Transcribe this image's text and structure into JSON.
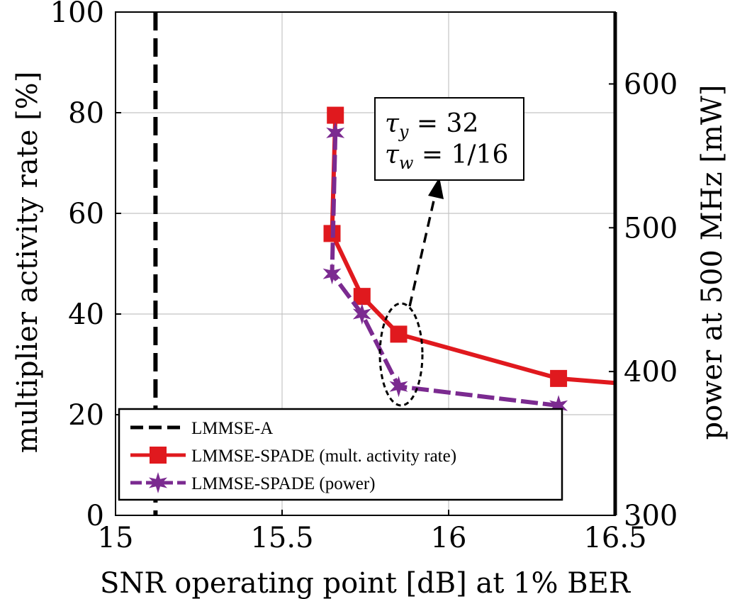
{
  "chart_data": {
    "type": "line",
    "xlabel": "SNR operating point [dB] at 1% BER",
    "ylabel_left": "multiplier activity rate [%]",
    "ylabel_right": "power at 500 MHz [mW]",
    "xlim": [
      15,
      16.5
    ],
    "ylim_left": [
      0,
      100
    ],
    "ylim_right": [
      300,
      650
    ],
    "xticks": [
      {
        "value": 15,
        "label": "15"
      },
      {
        "value": 15.5,
        "label": "15.5"
      },
      {
        "value": 16,
        "label": "16"
      },
      {
        "value": 16.5,
        "label": "16.5"
      }
    ],
    "yticks_left": [
      {
        "value": 0,
        "label": "0"
      },
      {
        "value": 20,
        "label": "20"
      },
      {
        "value": 40,
        "label": "40"
      },
      {
        "value": 60,
        "label": "60"
      },
      {
        "value": 80,
        "label": "80"
      },
      {
        "value": 100,
        "label": "100"
      }
    ],
    "yticks_right": [
      {
        "value": 300,
        "label": "300"
      },
      {
        "value": 400,
        "label": "400"
      },
      {
        "value": 500,
        "label": "500"
      },
      {
        "value": 600,
        "label": "600"
      }
    ],
    "grid": true,
    "legend_position": "bottom-left",
    "series": [
      {
        "name": "LMMSE-A",
        "kind": "vline",
        "x_value": 15.12,
        "color": "#000000",
        "dash": "long",
        "marker": "none"
      },
      {
        "name": "LMMSE-SPADE (mult. activity rate)",
        "axis": "left",
        "color": "#e0191e",
        "dash": "solid",
        "marker": "square",
        "points": [
          {
            "x": 15.66,
            "y": 79.5
          },
          {
            "x": 15.65,
            "y": 56.0
          },
          {
            "x": 15.74,
            "y": 43.5
          },
          {
            "x": 15.85,
            "y": 36.0
          },
          {
            "x": 16.33,
            "y": 27.2
          },
          {
            "x": 16.5,
            "y": 26.3
          }
        ],
        "marked_points": 5
      },
      {
        "name": "LMMSE-SPADE (power)",
        "axis": "left",
        "color": "#7b2a90",
        "dash": "dashed",
        "marker": "star",
        "points": [
          {
            "x": 15.66,
            "y": 76.0
          },
          {
            "x": 15.65,
            "y": 48.0
          },
          {
            "x": 15.74,
            "y": 40.0
          },
          {
            "x": 15.85,
            "y": 25.6
          },
          {
            "x": 16.33,
            "y": 21.8
          }
        ],
        "marked_points": 5
      }
    ],
    "annotations": [
      {
        "id": "tau_y",
        "text": "τ_y = 32"
      },
      {
        "id": "tau_w",
        "text": "τ_w = 1/16"
      }
    ]
  },
  "legend": {
    "entries": [
      "LMMSE-A",
      "LMMSE-SPADE (mult. activity rate)",
      "LMMSE-SPADE (power)"
    ]
  },
  "annotation": {
    "tau_y_sym": "τ",
    "tau_y_sub": "y",
    "tau_y_rhs": " = 32",
    "tau_w_sym": "τ",
    "tau_w_sub": "w",
    "tau_w_rhs": " = 1/16"
  }
}
